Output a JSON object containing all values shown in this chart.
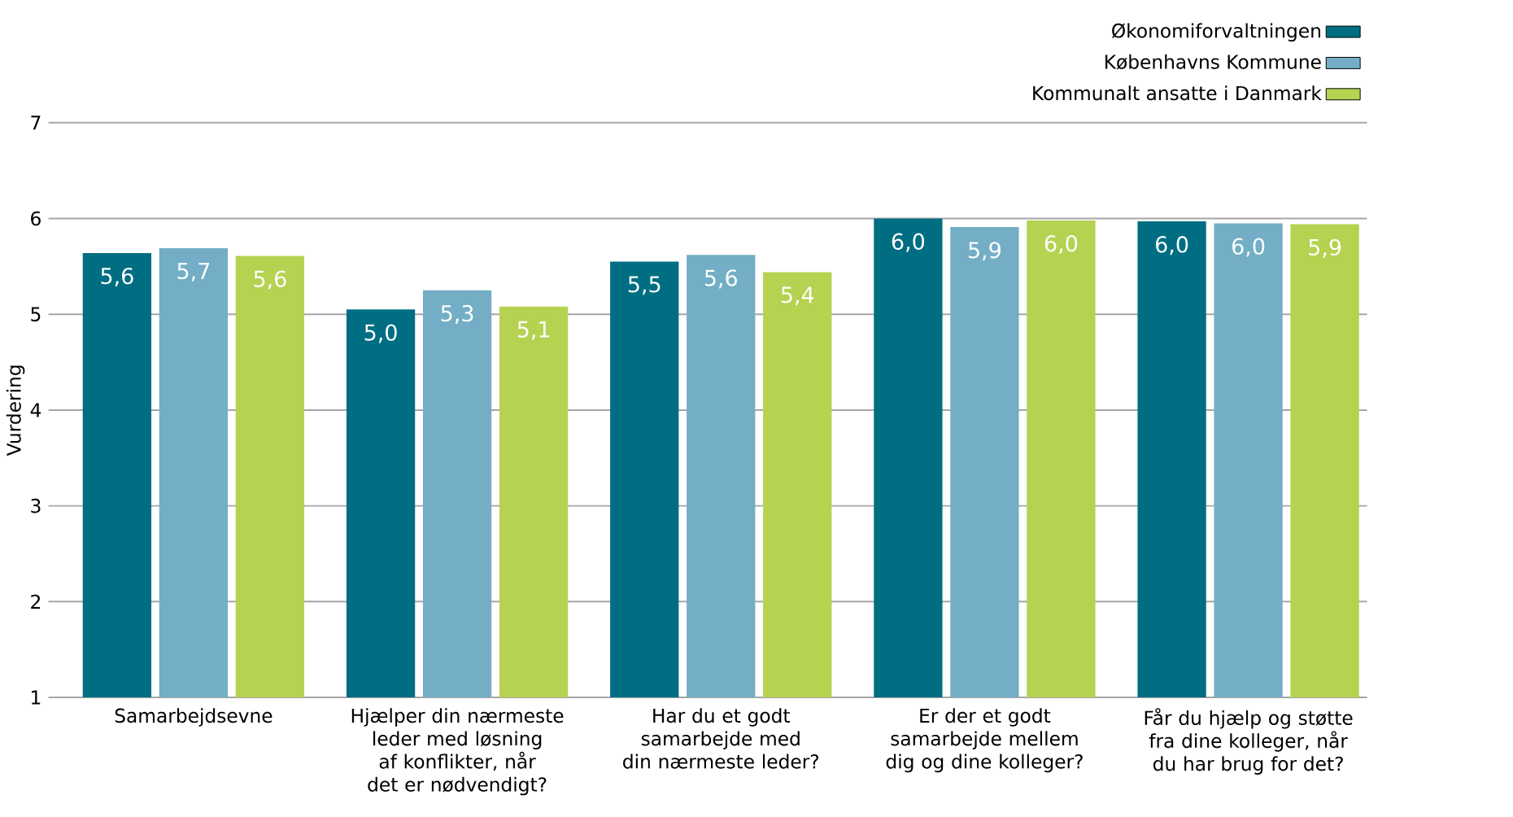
{
  "chart_data": {
    "type": "bar",
    "ylabel": "Vurdering",
    "categories": [
      "Samarbejdsevne",
      "Hjælper din nærmeste leder med løsning af konflikter, når det er nødvendigt?",
      "Har du et godt samarbejde med din nærmeste leder?",
      "Er der et godt samarbejde mellem dig og dine kolleger?",
      "Får du hjælp og støtte fra dine kolleger, når du har brug for det?"
    ],
    "series": [
      {
        "name": "Økonomiforvaltningen",
        "color": "#006e82",
        "values": [
          5.64,
          5.05,
          5.55,
          6.0,
          5.97
        ],
        "value_labels": [
          "5,6",
          "5,0",
          "5,5",
          "6,0",
          "6,0"
        ]
      },
      {
        "name": "Københavns Kommune",
        "color": "#73aec6",
        "values": [
          5.69,
          5.25,
          5.62,
          5.91,
          5.95
        ],
        "value_labels": [
          "5,7",
          "5,3",
          "5,6",
          "5,9",
          "6,0"
        ]
      },
      {
        "name": "Kommunalt ansatte i Danmark",
        "color": "#b5d251",
        "values": [
          5.61,
          5.08,
          5.44,
          5.98,
          5.94
        ],
        "value_labels": [
          "5,6",
          "5,1",
          "5,4",
          "6,0",
          "5,9"
        ]
      }
    ],
    "ylim": [
      1,
      7
    ],
    "yticks": [
      1,
      2,
      3,
      4,
      5,
      6,
      7
    ],
    "grid": "y",
    "legend": "top right"
  }
}
